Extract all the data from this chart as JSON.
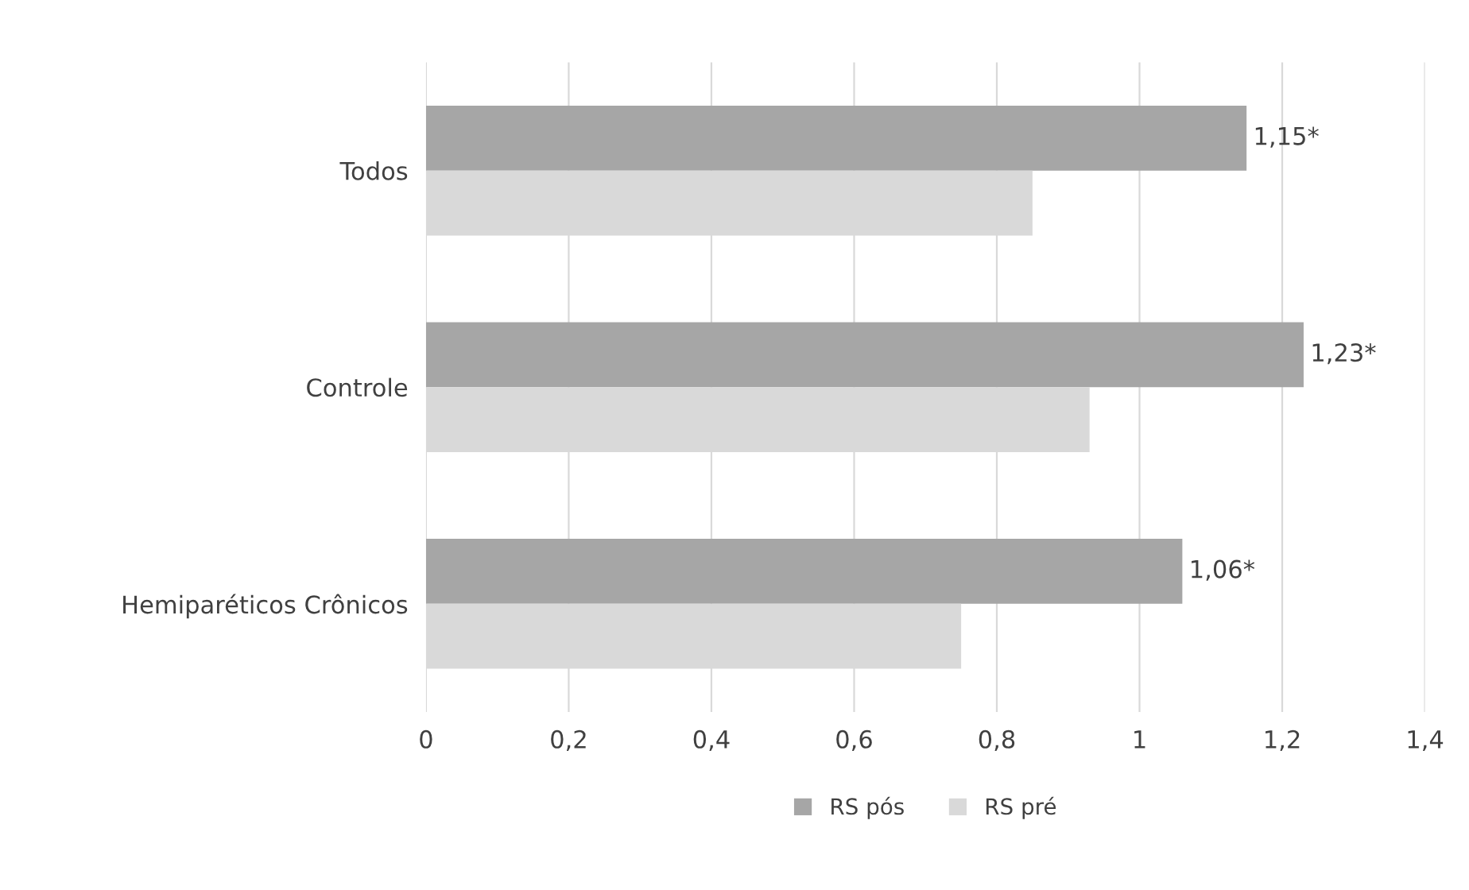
{
  "chart_data": {
    "type": "bar",
    "orientation": "horizontal",
    "categories": [
      "Todos",
      "Controle",
      "Hemiparéticos Crônicos"
    ],
    "series": [
      {
        "name": "RS pós",
        "color": "#a6a6a6",
        "values": [
          1.15,
          1.23,
          1.06
        ],
        "value_labels": [
          "1,15*",
          "1,23*",
          "1,06*"
        ]
      },
      {
        "name": "RS pré",
        "color": "#d9d9d9",
        "values": [
          0.85,
          0.93,
          0.75
        ]
      }
    ],
    "xlim": [
      0,
      1.4
    ],
    "xticks": [
      0,
      {
        "value": 0.2,
        "label": "0,2"
      },
      {
        "value": 0.4,
        "label": "0,4"
      },
      {
        "value": 0.6,
        "label": "0,6"
      },
      {
        "value": 0.8,
        "label": "0,8"
      },
      1,
      {
        "value": 1.2,
        "label": "1,2"
      },
      {
        "value": 1.4,
        "label": "1,4"
      }
    ],
    "grid": "x",
    "legend": "bottom"
  }
}
